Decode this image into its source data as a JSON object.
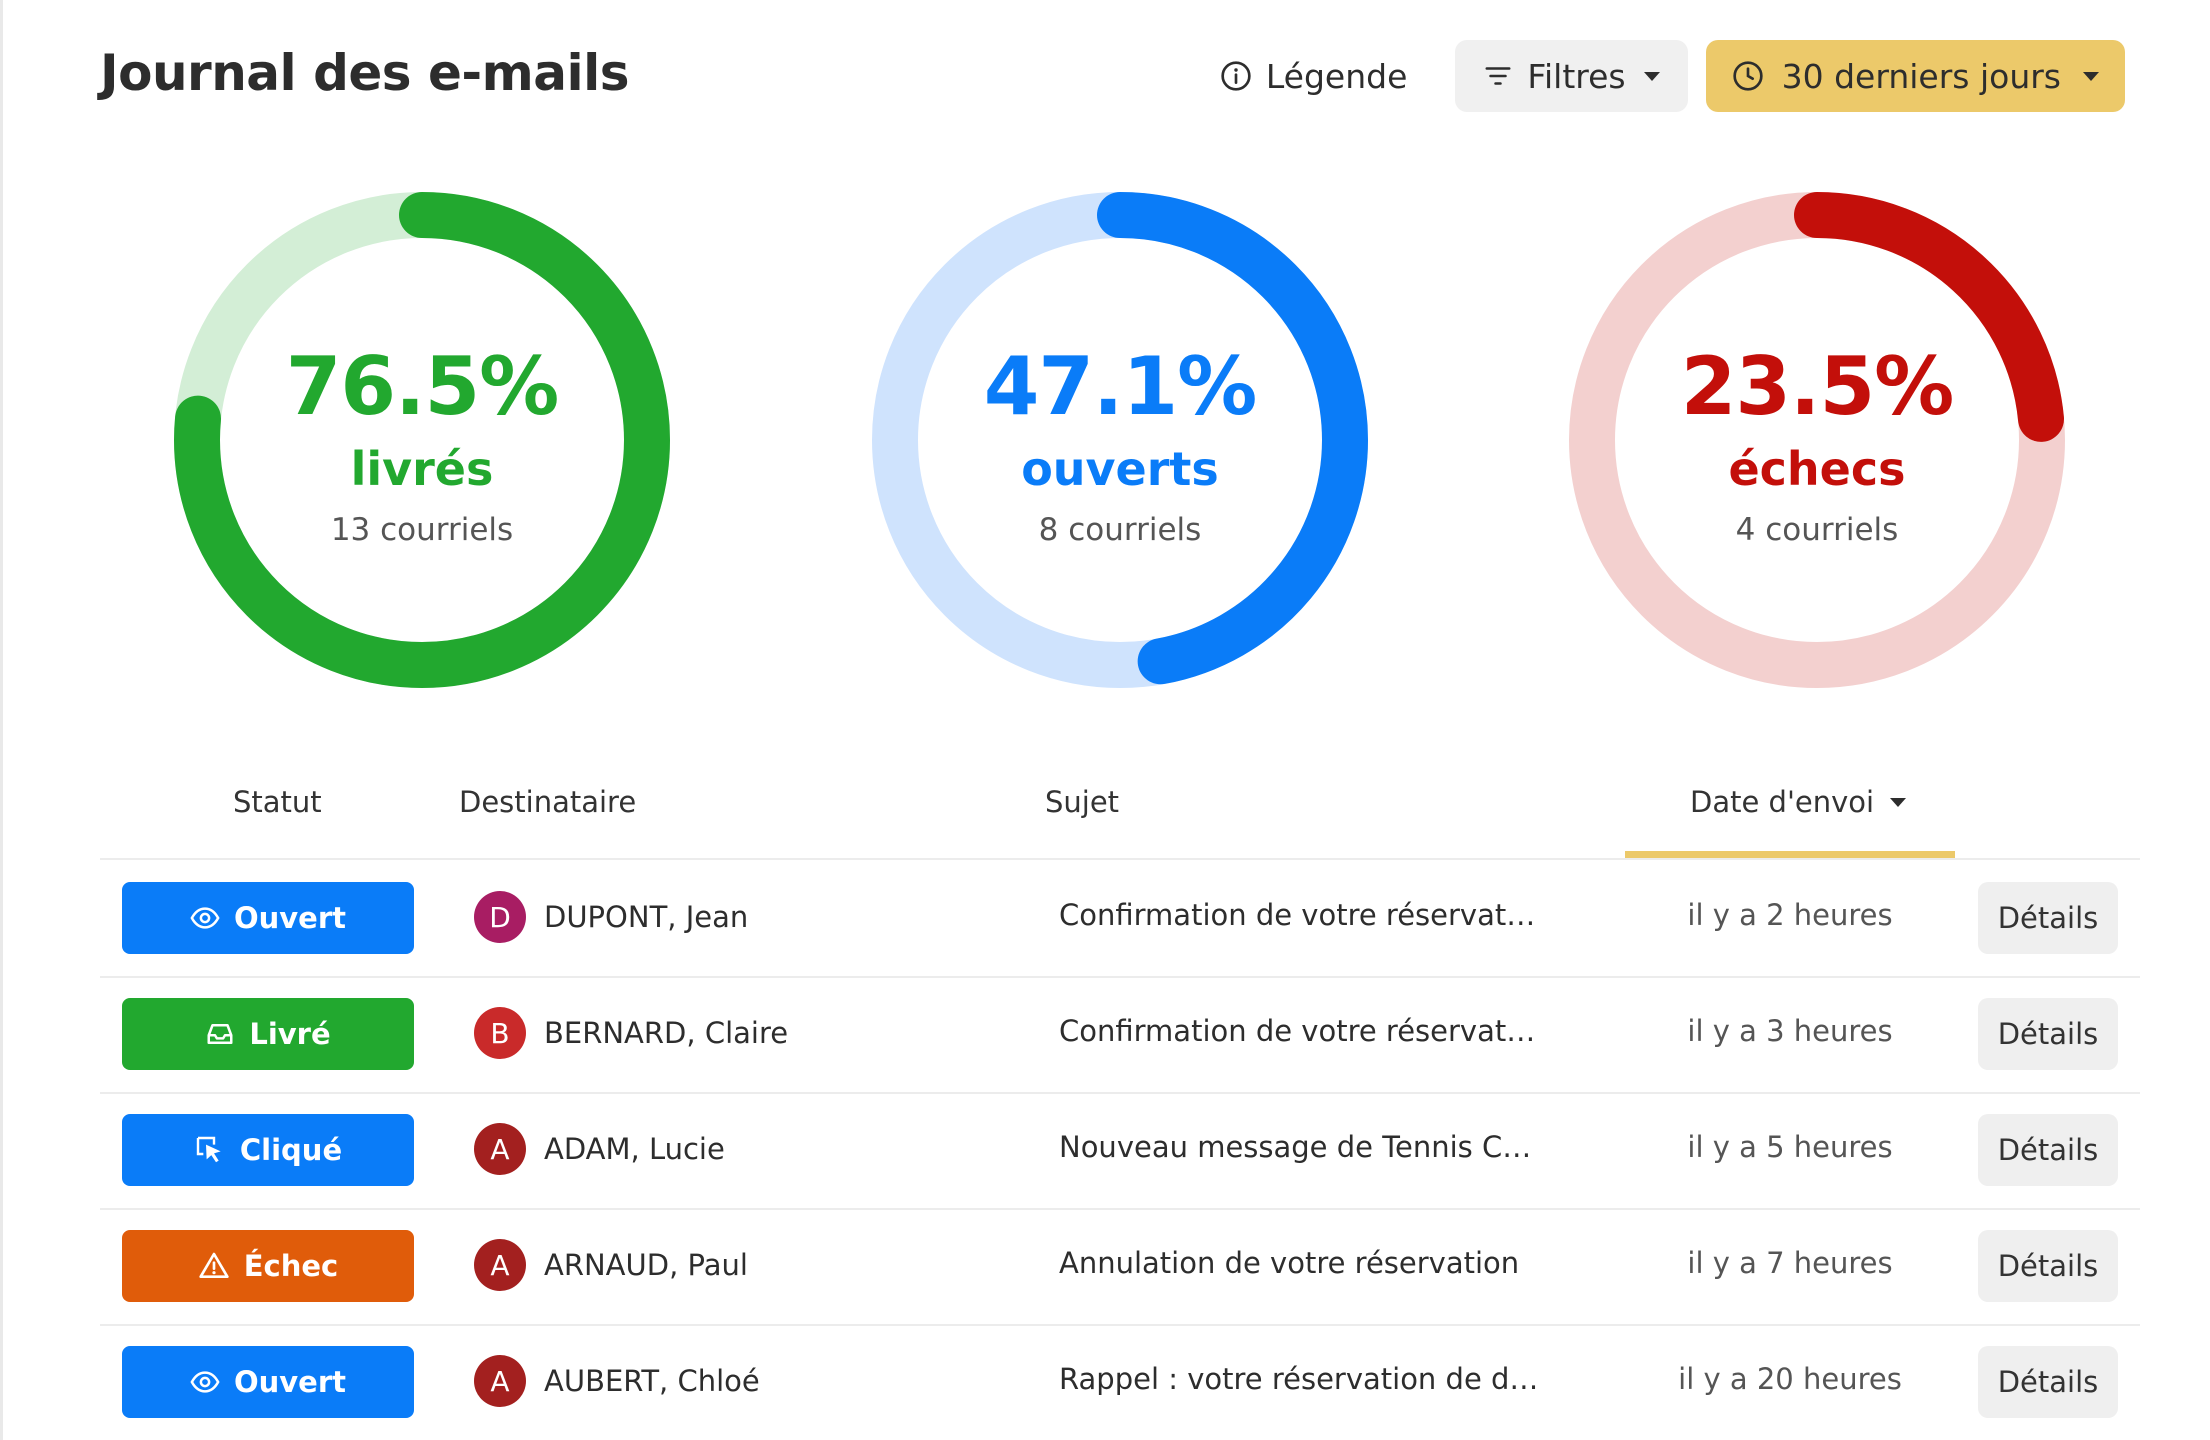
{
  "header": {
    "title": "Journal des e-mails",
    "legend_label": "Légende",
    "filters_label": "Filtres",
    "period_label": "30 derniers jours"
  },
  "stats": [
    {
      "percent": "76.5%",
      "label": "livrés",
      "count": "13 courriels",
      "fraction": 0.765,
      "color": "#22a82f",
      "track_color": "#d3eed6"
    },
    {
      "percent": "47.1%",
      "label": "ouverts",
      "count": "8 courriels",
      "fraction": 0.471,
      "color": "#0a7cf8",
      "track_color": "#cfe3fd"
    },
    {
      "percent": "23.5%",
      "label": "échecs",
      "count": "4 courriels",
      "fraction": 0.235,
      "color": "#c30f0a",
      "track_color": "#f3d0cf"
    }
  ],
  "table": {
    "headers": {
      "status": "Statut",
      "recipient": "Destinataire",
      "subject": "Sujet",
      "date": "Date d'envoi"
    },
    "rows": [
      {
        "status": "Ouvert",
        "status_icon": "eye-icon",
        "status_color": "#0a7cf8",
        "avatar_letter": "D",
        "avatar_color": "#a81d63",
        "recipient": "DUPONT, Jean",
        "subject": "Confirmation de votre réservation",
        "date": "il y a 2 heures",
        "details": "Détails"
      },
      {
        "status": "Livré",
        "status_icon": "inbox-icon",
        "status_color": "#22a82f",
        "avatar_letter": "B",
        "avatar_color": "#c92a2a",
        "recipient": "BERNARD, Claire",
        "subject": "Confirmation de votre réservation",
        "date": "il y a 3 heures",
        "details": "Détails"
      },
      {
        "status": "Cliqué",
        "status_icon": "cursor-click-icon",
        "status_color": "#0a7cf8",
        "avatar_letter": "A",
        "avatar_color": "#a3201f",
        "recipient": "ADAM, Lucie",
        "subject": "Nouveau message de Tennis Club ...",
        "date": "il y a 5 heures",
        "details": "Détails"
      },
      {
        "status": "Échec",
        "status_icon": "warning-icon",
        "status_color": "#e05c0a",
        "avatar_letter": "A",
        "avatar_color": "#a3201f",
        "recipient": "ARNAUD, Paul",
        "subject": "Annulation de votre réservation",
        "date": "il y a 7 heures",
        "details": "Détails"
      },
      {
        "status": "Ouvert",
        "status_icon": "eye-icon",
        "status_color": "#0a7cf8",
        "avatar_letter": "A",
        "avatar_color": "#a3201f",
        "recipient": "AUBERT, Chloé",
        "subject": "Rappel : votre réservation de dem...",
        "date": "il y a 20 heures",
        "details": "Détails"
      }
    ]
  }
}
